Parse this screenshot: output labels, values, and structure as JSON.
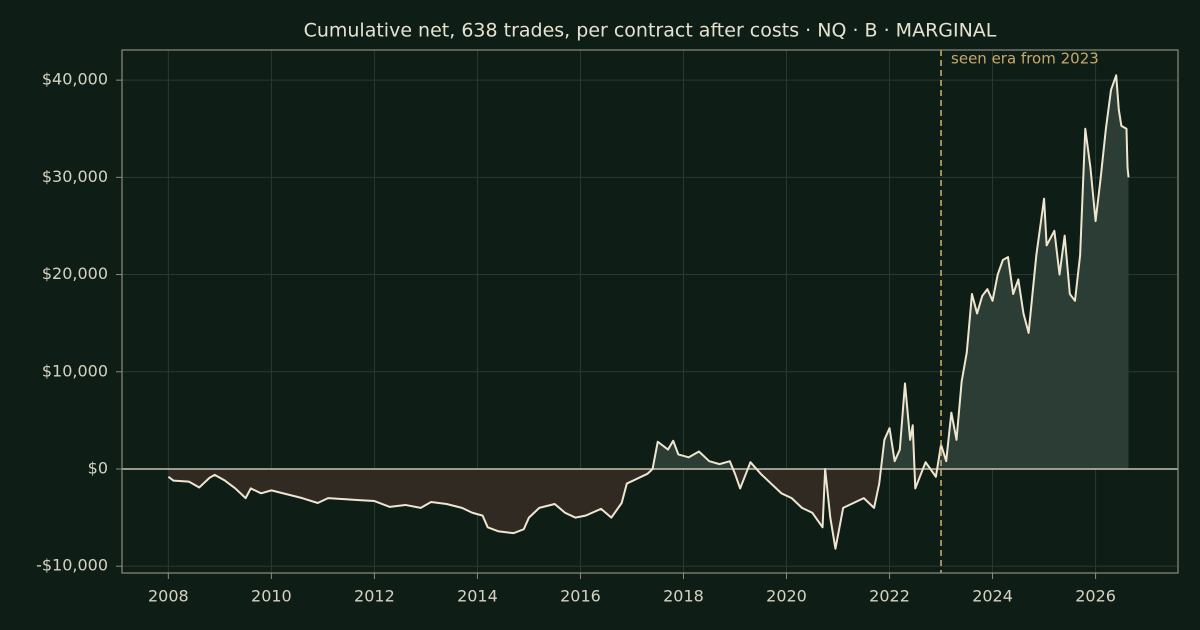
{
  "chart_data": {
    "type": "line",
    "title": "Cumulative net, 638 trades, per contract after costs  ·  NQ · B · MARGINAL",
    "x": [
      2008.0,
      2008.1,
      2008.4,
      2008.6,
      2008.8,
      2008.9,
      2009.1,
      2009.3,
      2009.5,
      2009.6,
      2009.8,
      2010.0,
      2010.3,
      2010.6,
      2010.9,
      2011.1,
      2011.4,
      2011.7,
      2012.0,
      2012.3,
      2012.6,
      2012.9,
      2013.1,
      2013.4,
      2013.7,
      2013.9,
      2014.1,
      2014.2,
      2014.4,
      2014.7,
      2014.9,
      2015.0,
      2015.2,
      2015.5,
      2015.7,
      2015.9,
      2016.1,
      2016.4,
      2016.6,
      2016.8,
      2016.9,
      2017.1,
      2017.3,
      2017.4,
      2017.5,
      2017.7,
      2017.8,
      2017.9,
      2018.1,
      2018.3,
      2018.5,
      2018.7,
      2018.9,
      2019.0,
      2019.1,
      2019.3,
      2019.5,
      2019.7,
      2019.9,
      2020.1,
      2020.3,
      2020.5,
      2020.7,
      2020.75,
      2020.85,
      2020.95,
      2021.1,
      2021.3,
      2021.5,
      2021.7,
      2021.8,
      2021.9,
      2022.0,
      2022.1,
      2022.2,
      2022.3,
      2022.4,
      2022.45,
      2022.5,
      2022.7,
      2022.9,
      2023.0,
      2023.1,
      2023.2,
      2023.3,
      2023.4,
      2023.5,
      2023.6,
      2023.7,
      2023.8,
      2023.9,
      2024.0,
      2024.1,
      2024.2,
      2024.3,
      2024.4,
      2024.5,
      2024.6,
      2024.7,
      2024.85,
      2025.0,
      2025.05,
      2025.2,
      2025.3,
      2025.4,
      2025.5,
      2025.6,
      2025.7,
      2025.8,
      2025.9,
      2026.0,
      2026.1,
      2026.2,
      2026.3,
      2026.4,
      2026.45,
      2026.5,
      2026.6,
      2026.62,
      2026.64
    ],
    "values": [
      -800,
      -1200,
      -1300,
      -1900,
      -900,
      -600,
      -1200,
      -2000,
      -3000,
      -2000,
      -2500,
      -2200,
      -2600,
      -3000,
      -3500,
      -3000,
      -3100,
      -3200,
      -3300,
      -3900,
      -3700,
      -4000,
      -3400,
      -3600,
      -4000,
      -4500,
      -4800,
      -6000,
      -6400,
      -6600,
      -6200,
      -5000,
      -4000,
      -3600,
      -4500,
      -5000,
      -4800,
      -4100,
      -5000,
      -3500,
      -1500,
      -1000,
      -500,
      0,
      2800,
      2000,
      2900,
      1500,
      1200,
      1800,
      800,
      500,
      800,
      -500,
      -2000,
      700,
      -500,
      -1500,
      -2500,
      -3000,
      -4000,
      -4500,
      -6000,
      0,
      -5000,
      -8200,
      -4000,
      -3500,
      -3000,
      -4000,
      -1500,
      3000,
      4200,
      800,
      2000,
      8800,
      3000,
      4500,
      -2000,
      700,
      -800,
      2500,
      800,
      5800,
      3000,
      9000,
      12000,
      18000,
      16000,
      17800,
      18500,
      17300,
      20000,
      21500,
      21800,
      18000,
      19500,
      16000,
      14000,
      22000,
      27800,
      23000,
      24500,
      20000,
      24000,
      18000,
      17300,
      22000,
      35000,
      31000,
      25500,
      30000,
      35000,
      39000,
      40500,
      37000,
      35300,
      35000,
      31000,
      30000
    ],
    "color": "#efe6d0",
    "xlim": [
      2007.1,
      2027.6
    ],
    "ylim": [
      -10700,
      43100
    ],
    "xticks": [
      2008,
      2010,
      2012,
      2014,
      2016,
      2018,
      2020,
      2022,
      2024,
      2026
    ],
    "yticks": [
      {
        "value": -10000,
        "label": "-$10,000"
      },
      {
        "value": 0,
        "label": "$0"
      },
      {
        "value": 10000,
        "label": "$10,000"
      },
      {
        "value": 20000,
        "label": "$20,000"
      },
      {
        "value": 30000,
        "label": "$30,000"
      },
      {
        "value": 40000,
        "label": "$40,000"
      }
    ],
    "grid": true,
    "annotation": {
      "text": "seen era from 2023",
      "x": 2023,
      "color": "#c8a86a"
    }
  }
}
